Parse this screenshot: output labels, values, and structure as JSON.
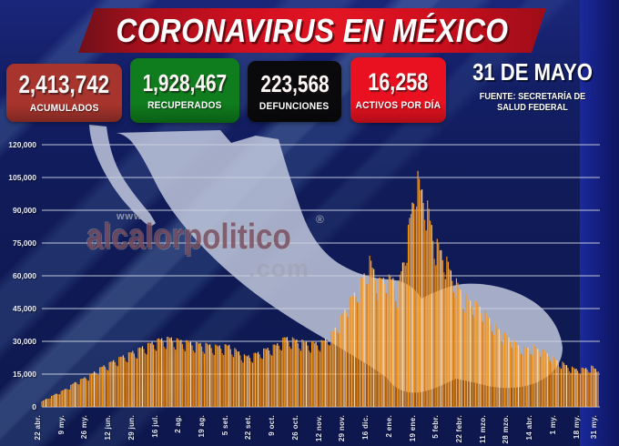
{
  "header": {
    "title": "CORONAVIRUS EN MÉXICO"
  },
  "stats": [
    {
      "value": "2,413,742",
      "label": "ACUMULADOS",
      "color": "#a7342d"
    },
    {
      "value": "1,928,467",
      "label": "RECUPERADOS",
      "color": "#0f7d1d"
    },
    {
      "value": "223,568",
      "label": "DEFUNCIONES",
      "color": "#0a0a0c"
    },
    {
      "value": "16,258",
      "label": "ACTIVOS POR DÍA",
      "color": "#e91120"
    }
  ],
  "date_panel": {
    "date": "31 DE MAYO",
    "source_line1": "FUENTE: SECRETARÍA DE",
    "source_line2": "SALUD FEDERAL"
  },
  "watermark": {
    "prefix": "www.",
    "name": "alcalorpolitico",
    "suffix": ".com",
    "registered": "®"
  },
  "chart_data": {
    "type": "bar",
    "series_name": "activos por día",
    "ylim": [
      0,
      120000
    ],
    "grid": "on",
    "y_ticks": [
      "0",
      "15,000",
      "30,000",
      "45,000",
      "60,000",
      "75,000",
      "90,000",
      "105,000",
      "120,000"
    ],
    "x_ticks": [
      {
        "label": "22 abr.",
        "day": 0
      },
      {
        "label": "9 my.",
        "day": 17
      },
      {
        "label": "26 my.",
        "day": 34
      },
      {
        "label": "12 jun.",
        "day": 51
      },
      {
        "label": "29 jun.",
        "day": 68
      },
      {
        "label": "16 jul.",
        "day": 85
      },
      {
        "label": "2 ag.",
        "day": 102
      },
      {
        "label": "19 ag.",
        "day": 119
      },
      {
        "label": "5 set.",
        "day": 136
      },
      {
        "label": "22 set.",
        "day": 153
      },
      {
        "label": "9 oct.",
        "day": 170
      },
      {
        "label": "26 oct.",
        "day": 187
      },
      {
        "label": "12 nov.",
        "day": 204
      },
      {
        "label": "29 nov.",
        "day": 221
      },
      {
        "label": "16 dic.",
        "day": 238
      },
      {
        "label": "2 ene.",
        "day": 255
      },
      {
        "label": "19 ene.",
        "day": 272
      },
      {
        "label": "5 febr.",
        "day": 289
      },
      {
        "label": "22 febr.",
        "day": 306
      },
      {
        "label": "11 mzo.",
        "day": 323
      },
      {
        "label": "28 mzo.",
        "day": 340
      },
      {
        "label": "14 abr.",
        "day": 357
      },
      {
        "label": "1 my.",
        "day": 374
      },
      {
        "label": "18 my.",
        "day": 391
      },
      {
        "label": "31 my.",
        "day": 404
      }
    ],
    "days_total": 405,
    "anchors": [
      [
        0,
        2500
      ],
      [
        8,
        5200
      ],
      [
        17,
        8000
      ],
      [
        25,
        11500
      ],
      [
        34,
        14000
      ],
      [
        42,
        17500
      ],
      [
        51,
        20500
      ],
      [
        59,
        23000
      ],
      [
        68,
        25500
      ],
      [
        76,
        28000
      ],
      [
        85,
        30500
      ],
      [
        93,
        31200
      ],
      [
        102,
        29800
      ],
      [
        110,
        29000
      ],
      [
        119,
        28300
      ],
      [
        127,
        27400
      ],
      [
        136,
        27800
      ],
      [
        142,
        25200
      ],
      [
        148,
        22800
      ],
      [
        153,
        23500
      ],
      [
        160,
        25500
      ],
      [
        170,
        28000
      ],
      [
        177,
        31500
      ],
      [
        183,
        30500
      ],
      [
        187,
        30000
      ],
      [
        195,
        28800
      ],
      [
        204,
        29500
      ],
      [
        212,
        34500
      ],
      [
        221,
        45000
      ],
      [
        228,
        52500
      ],
      [
        234,
        60000
      ],
      [
        238,
        66500
      ],
      [
        241,
        62000
      ],
      [
        244,
        56500
      ],
      [
        249,
        58500
      ],
      [
        255,
        58000
      ],
      [
        258,
        52500
      ],
      [
        262,
        65000
      ],
      [
        266,
        80000
      ],
      [
        269,
        92000
      ],
      [
        272,
        106000
      ],
      [
        275,
        99000
      ],
      [
        278,
        96000
      ],
      [
        281,
        88000
      ],
      [
        285,
        76000
      ],
      [
        289,
        71500
      ],
      [
        292,
        69000
      ],
      [
        298,
        60000
      ],
      [
        303,
        54000
      ],
      [
        306,
        50500
      ],
      [
        312,
        47500
      ],
      [
        317,
        46000
      ],
      [
        323,
        41500
      ],
      [
        330,
        36500
      ],
      [
        335,
        33000
      ],
      [
        340,
        31000
      ],
      [
        345,
        28200
      ],
      [
        350,
        26500
      ],
      [
        357,
        27200
      ],
      [
        363,
        25500
      ],
      [
        368,
        24000
      ],
      [
        374,
        21000
      ],
      [
        380,
        19200
      ],
      [
        385,
        17600
      ],
      [
        391,
        17000
      ],
      [
        396,
        17800
      ],
      [
        400,
        18200
      ],
      [
        404,
        16258
      ]
    ],
    "bar_color_primary": "#f59413",
    "bar_color_secondary": "#fba43a",
    "bar_color_pale": "#ffd8a1",
    "bar_color_dark": "#d9760a"
  }
}
